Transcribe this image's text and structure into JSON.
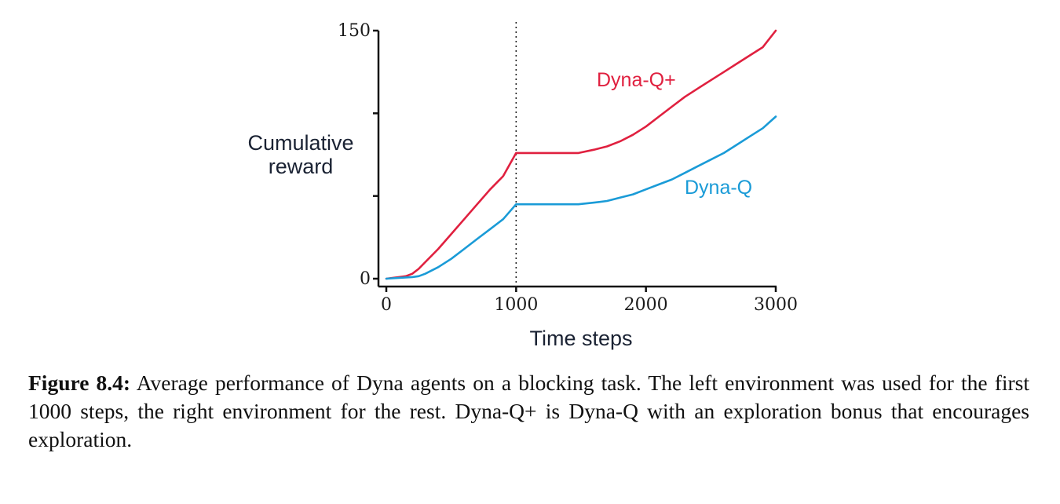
{
  "chart_data": {
    "type": "line",
    "xlabel": "Time steps",
    "ylabel_lines": [
      "Cumulative",
      "reward"
    ],
    "xlim": [
      0,
      3000
    ],
    "ylim": [
      0,
      150
    ],
    "x_ticks": [
      0,
      1000,
      2000,
      3000
    ],
    "x_tick_labels": [
      "0",
      "1000",
      "2000",
      "3000"
    ],
    "y_ticks": [
      0,
      50,
      100,
      150
    ],
    "y_tick_labels": [
      "0",
      "",
      "",
      "150"
    ],
    "grid": false,
    "vline": {
      "x": 1000,
      "style": "dotted"
    },
    "series": [
      {
        "name": "Dyna-Q+",
        "color": "#e0203f",
        "x": [
          0,
          100,
          150,
          200,
          250,
          300,
          400,
          500,
          600,
          700,
          800,
          900,
          1000,
          1480,
          1600,
          1700,
          1800,
          1900,
          2000,
          2100,
          2200,
          2300,
          2400,
          2500,
          2600,
          2700,
          2800,
          2900,
          3000
        ],
        "y": [
          0,
          1,
          1.5,
          3,
          6,
          10,
          18,
          27,
          36,
          45,
          54,
          62,
          76,
          76,
          78,
          80,
          83,
          87,
          92,
          98,
          104,
          110,
          115,
          120,
          125,
          130,
          135,
          140,
          150
        ]
      },
      {
        "name": "Dyna-Q",
        "color": "#1a9bd7",
        "x": [
          0,
          100,
          200,
          250,
          300,
          400,
          500,
          600,
          700,
          800,
          900,
          1000,
          1480,
          1600,
          1700,
          1800,
          1900,
          2000,
          2100,
          2200,
          2300,
          2400,
          2500,
          2600,
          2700,
          2800,
          2900,
          3000
        ],
        "y": [
          0,
          0.5,
          1,
          1.5,
          3,
          7,
          12,
          18,
          24,
          30,
          36,
          45,
          45,
          46,
          47,
          49,
          51,
          54,
          57,
          60,
          64,
          68,
          72,
          76,
          81,
          86,
          91,
          98
        ]
      }
    ]
  },
  "caption": {
    "label": "Figure 8.4:",
    "text": " Average performance of Dyna agents on a blocking task. The left environment was used for the first 1000 steps, the right environment for the rest. Dyna-Q+ is Dyna-Q with an exploration bonus that encourages exploration."
  }
}
